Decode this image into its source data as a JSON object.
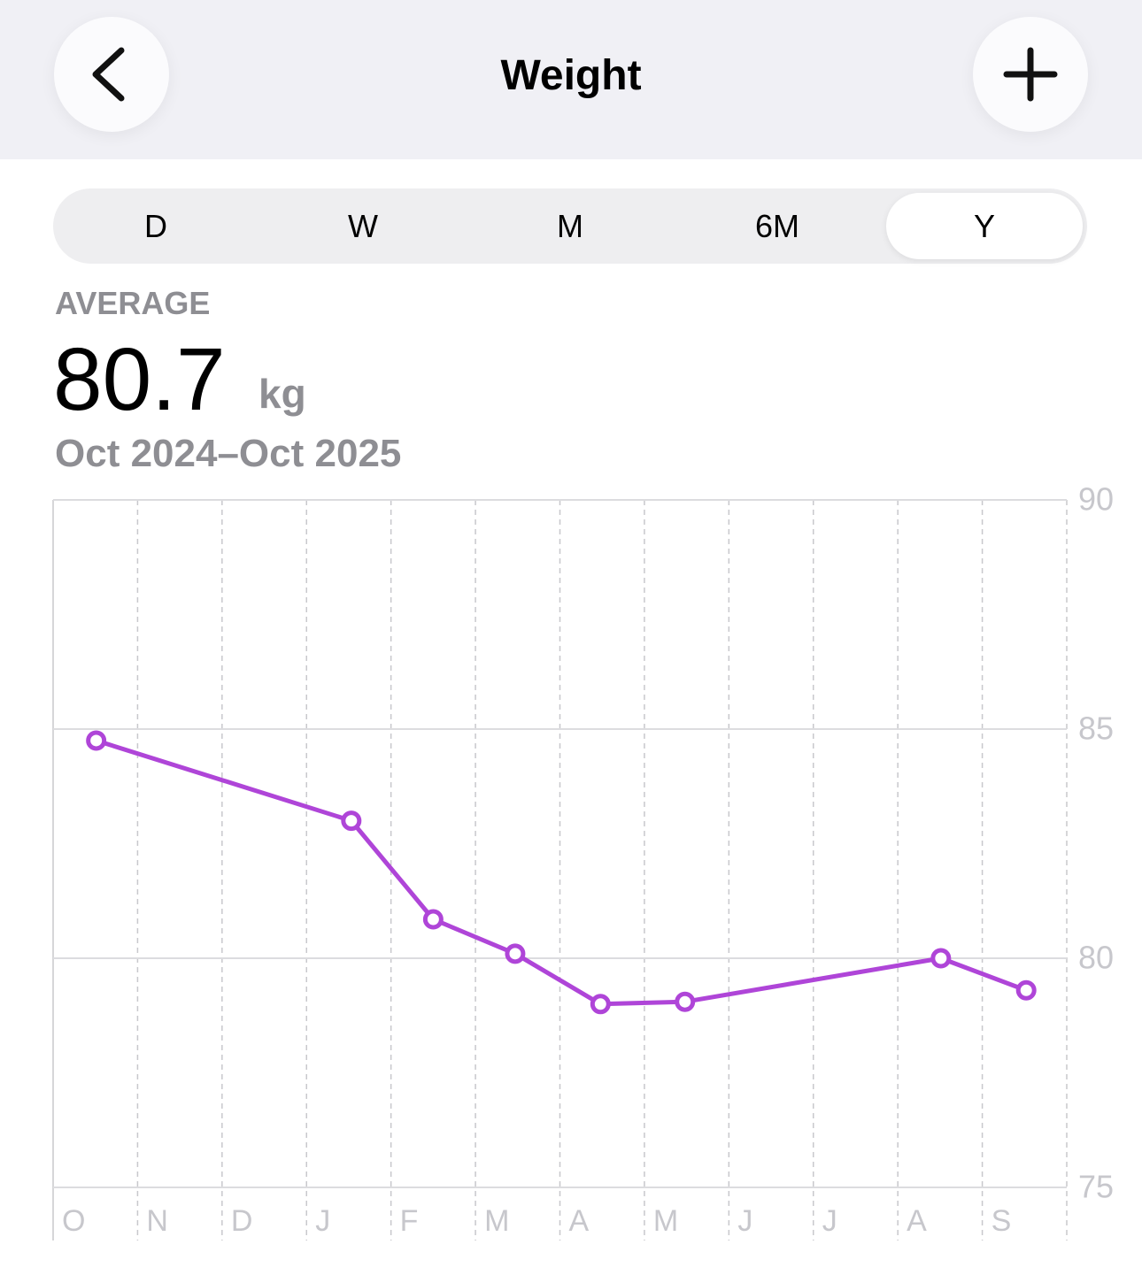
{
  "header": {
    "title": "Weight"
  },
  "segments": [
    "D",
    "W",
    "M",
    "6M",
    "Y"
  ],
  "summary": {
    "label": "AVERAGE",
    "value": "80.7",
    "unit": "kg",
    "range": "Oct 2024–Oct 2025"
  },
  "chart_data": {
    "type": "line",
    "xticks": [
      {
        "value": 0,
        "label": "O"
      },
      {
        "value": 1,
        "label": "N"
      },
      {
        "value": 2,
        "label": "D"
      },
      {
        "value": 3,
        "label": "J"
      },
      {
        "value": 4,
        "label": "F"
      },
      {
        "value": 5,
        "label": "M"
      },
      {
        "value": 6,
        "label": "A"
      },
      {
        "value": 7,
        "label": "M"
      },
      {
        "value": 8,
        "label": "J"
      },
      {
        "value": 9,
        "label": "J"
      },
      {
        "value": 10,
        "label": "A"
      },
      {
        "value": 11,
        "label": "S"
      }
    ],
    "xlim": [
      0,
      12
    ],
    "ylim": [
      75,
      90
    ],
    "yticks": [
      75,
      80,
      85,
      90
    ],
    "x": [
      0.51,
      3.53,
      4.5,
      5.47,
      6.48,
      7.48,
      10.51,
      11.52
    ],
    "series": [
      {
        "color": "#af45d8",
        "values": [
          84.75,
          83.0,
          80.85,
          80.1,
          79.0,
          79.05,
          80.0,
          79.3
        ]
      }
    ],
    "grid": true
  }
}
